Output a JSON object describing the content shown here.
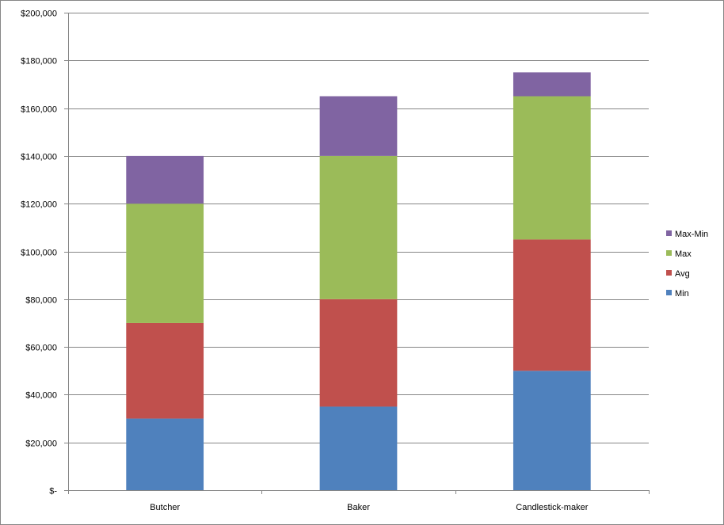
{
  "chart_data": {
    "type": "bar",
    "stacked": true,
    "categories": [
      "Butcher",
      "Baker",
      "Candlestick-maker"
    ],
    "series": [
      {
        "name": "Min",
        "values": [
          30000,
          35000,
          50000
        ],
        "color": "#4F81BD"
      },
      {
        "name": "Avg",
        "values": [
          40000,
          45000,
          55000
        ],
        "color": "#C0504D"
      },
      {
        "name": "Max",
        "values": [
          50000,
          60000,
          60000
        ],
        "color": "#9BBB59"
      },
      {
        "name": "Max-Min",
        "values": [
          20000,
          25000,
          10000
        ],
        "color": "#8064A2"
      }
    ],
    "ylim": [
      0,
      200000
    ],
    "y_ticks": [
      0,
      20000,
      40000,
      60000,
      80000,
      100000,
      120000,
      140000,
      160000,
      180000,
      200000
    ],
    "y_tick_labels": [
      "$-",
      "$20,000",
      "$40,000",
      "$60,000",
      "$80,000",
      "$100,000",
      "$120,000",
      "$140,000",
      "$160,000",
      "$180,000",
      "$200,000"
    ],
    "grid": true,
    "legend_position": "right",
    "legend_order": [
      "Max-Min",
      "Max",
      "Avg",
      "Min"
    ],
    "title": "",
    "xlabel": "",
    "ylabel": ""
  }
}
